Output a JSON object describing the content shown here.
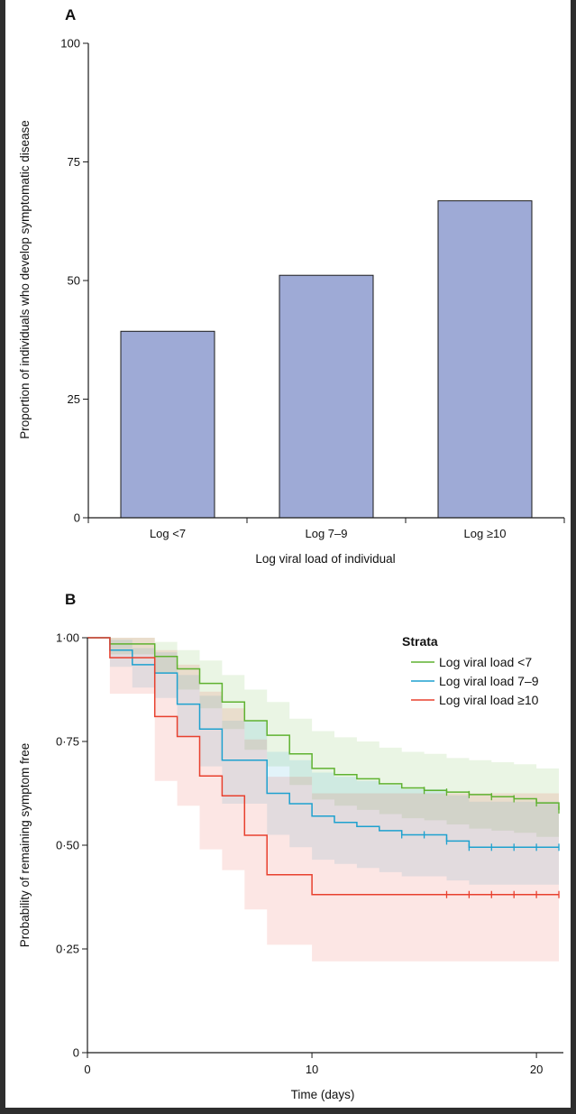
{
  "figure": {
    "background": "#ffffff",
    "frame": "#2e2e2e"
  },
  "chart_data": [
    {
      "panel": "A",
      "type": "bar",
      "xlabel": "Log viral load of individual",
      "ylabel": "Proportion of individuals who develop symptomatic disease",
      "categories": [
        "Log <7",
        "Log 7–9",
        "Log ≥10"
      ],
      "values": [
        39.3,
        51.1,
        66.8
      ],
      "ylim": [
        0,
        100
      ],
      "yticks": [
        0,
        25,
        50,
        75,
        100
      ],
      "ytick_labels": [
        "0",
        "25",
        "50",
        "75",
        "100"
      ],
      "bar_color": "#9eaad6",
      "grid": false
    },
    {
      "panel": "B",
      "type": "line",
      "xlabel": "Time (days)",
      "ylabel": "Probability of remaining symptom free",
      "xlim": [
        0,
        21.2
      ],
      "ylim": [
        0,
        1
      ],
      "xticks": [
        0,
        10,
        20
      ],
      "xtick_labels": [
        "0",
        "10",
        "20"
      ],
      "yticks": [
        0,
        0.25,
        0.5,
        0.75,
        1.0
      ],
      "ytick_labels": [
        "0",
        "0·25",
        "0·50",
        "0·75",
        "1·00"
      ],
      "grid": false,
      "legend": {
        "title": "Strata",
        "position": "top-right"
      },
      "series": [
        {
          "name": "Log viral load <7",
          "color": "#5fb230",
          "steps": [
            [
              0,
              1.0
            ],
            [
              1,
              0.985
            ],
            [
              3,
              0.955
            ],
            [
              4,
              0.925
            ],
            [
              5,
              0.89
            ],
            [
              6,
              0.845
            ],
            [
              7,
              0.8
            ],
            [
              8,
              0.765
            ],
            [
              9,
              0.72
            ],
            [
              10,
              0.685
            ],
            [
              11,
              0.67
            ],
            [
              12,
              0.66
            ],
            [
              13,
              0.648
            ],
            [
              14,
              0.638
            ],
            [
              15,
              0.632
            ],
            [
              16,
              0.628
            ],
            [
              17,
              0.622
            ],
            [
              18,
              0.617
            ],
            [
              19,
              0.612
            ],
            [
              20,
              0.602
            ],
            [
              21,
              0.585
            ]
          ],
          "censor": [
            15,
            16,
            17,
            18,
            19,
            20,
            21
          ],
          "ci_upper": [
            [
              0,
              1.0
            ],
            [
              1,
              1.0
            ],
            [
              3,
              0.99
            ],
            [
              4,
              0.97
            ],
            [
              5,
              0.945
            ],
            [
              6,
              0.91
            ],
            [
              7,
              0.875
            ],
            [
              8,
              0.845
            ],
            [
              9,
              0.805
            ],
            [
              10,
              0.775
            ],
            [
              11,
              0.76
            ],
            [
              12,
              0.75
            ],
            [
              13,
              0.735
            ],
            [
              14,
              0.725
            ],
            [
              15,
              0.72
            ],
            [
              16,
              0.71
            ],
            [
              17,
              0.705
            ],
            [
              18,
              0.7
            ],
            [
              19,
              0.695
            ],
            [
              20,
              0.685
            ],
            [
              21,
              0.675
            ]
          ],
          "ci_lower": [
            [
              0,
              1.0
            ],
            [
              1,
              0.96
            ],
            [
              3,
              0.915
            ],
            [
              4,
              0.875
            ],
            [
              5,
              0.83
            ],
            [
              6,
              0.78
            ],
            [
              7,
              0.73
            ],
            [
              8,
              0.69
            ],
            [
              9,
              0.645
            ],
            [
              10,
              0.61
            ],
            [
              11,
              0.595
            ],
            [
              12,
              0.585
            ],
            [
              13,
              0.575
            ],
            [
              14,
              0.565
            ],
            [
              15,
              0.56
            ],
            [
              16,
              0.55
            ],
            [
              17,
              0.54
            ],
            [
              18,
              0.535
            ],
            [
              19,
              0.53
            ],
            [
              20,
              0.52
            ],
            [
              21,
              0.5
            ]
          ]
        },
        {
          "name": "Log viral load 7–9",
          "color": "#1ea1cf",
          "steps": [
            [
              0,
              1.0
            ],
            [
              1,
              0.97
            ],
            [
              2,
              0.935
            ],
            [
              3,
              0.915
            ],
            [
              4,
              0.84
            ],
            [
              5,
              0.78
            ],
            [
              6,
              0.705
            ],
            [
              8,
              0.625
            ],
            [
              9,
              0.6
            ],
            [
              10,
              0.57
            ],
            [
              11,
              0.555
            ],
            [
              12,
              0.545
            ],
            [
              13,
              0.535
            ],
            [
              14,
              0.525
            ],
            [
              16,
              0.51
            ],
            [
              17,
              0.495
            ]
          ],
          "censor": [
            14,
            15,
            16,
            17,
            18,
            19,
            20,
            21
          ],
          "ci_upper": [
            [
              0,
              1.0
            ],
            [
              1,
              0.995
            ],
            [
              2,
              0.975
            ],
            [
              3,
              0.965
            ],
            [
              4,
              0.91
            ],
            [
              5,
              0.86
            ],
            [
              6,
              0.8
            ],
            [
              8,
              0.725
            ],
            [
              9,
              0.705
            ],
            [
              10,
              0.675
            ],
            [
              11,
              0.665
            ],
            [
              12,
              0.655
            ],
            [
              13,
              0.645
            ],
            [
              14,
              0.635
            ],
            [
              16,
              0.62
            ],
            [
              17,
              0.605
            ]
          ],
          "ci_lower": [
            [
              0,
              1.0
            ],
            [
              1,
              0.93
            ],
            [
              2,
              0.88
            ],
            [
              3,
              0.855
            ],
            [
              4,
              0.76
            ],
            [
              5,
              0.69
            ],
            [
              6,
              0.6
            ],
            [
              8,
              0.525
            ],
            [
              9,
              0.495
            ],
            [
              10,
              0.465
            ],
            [
              11,
              0.455
            ],
            [
              12,
              0.445
            ],
            [
              13,
              0.435
            ],
            [
              14,
              0.425
            ],
            [
              16,
              0.415
            ],
            [
              17,
              0.405
            ]
          ]
        },
        {
          "name": "Log viral load ≥10",
          "color": "#e8402e",
          "steps": [
            [
              0,
              1.0
            ],
            [
              1,
              0.952
            ],
            [
              3,
              0.81
            ],
            [
              4,
              0.762
            ],
            [
              5,
              0.667
            ],
            [
              6,
              0.619
            ],
            [
              7,
              0.524
            ],
            [
              8,
              0.429
            ],
            [
              10,
              0.381
            ]
          ],
          "censor": [
            16,
            17,
            18,
            19,
            20,
            21
          ],
          "ci_upper": [
            [
              0,
              1.0
            ],
            [
              1,
              1.0
            ],
            [
              3,
              0.97
            ],
            [
              4,
              0.935
            ],
            [
              5,
              0.87
            ],
            [
              6,
              0.83
            ],
            [
              7,
              0.755
            ],
            [
              8,
              0.665
            ],
            [
              10,
              0.625
            ]
          ],
          "ci_lower": [
            [
              0,
              1.0
            ],
            [
              1,
              0.865
            ],
            [
              3,
              0.655
            ],
            [
              4,
              0.595
            ],
            [
              5,
              0.49
            ],
            [
              6,
              0.44
            ],
            [
              7,
              0.345
            ],
            [
              8,
              0.26
            ],
            [
              10,
              0.22
            ]
          ]
        }
      ]
    }
  ]
}
